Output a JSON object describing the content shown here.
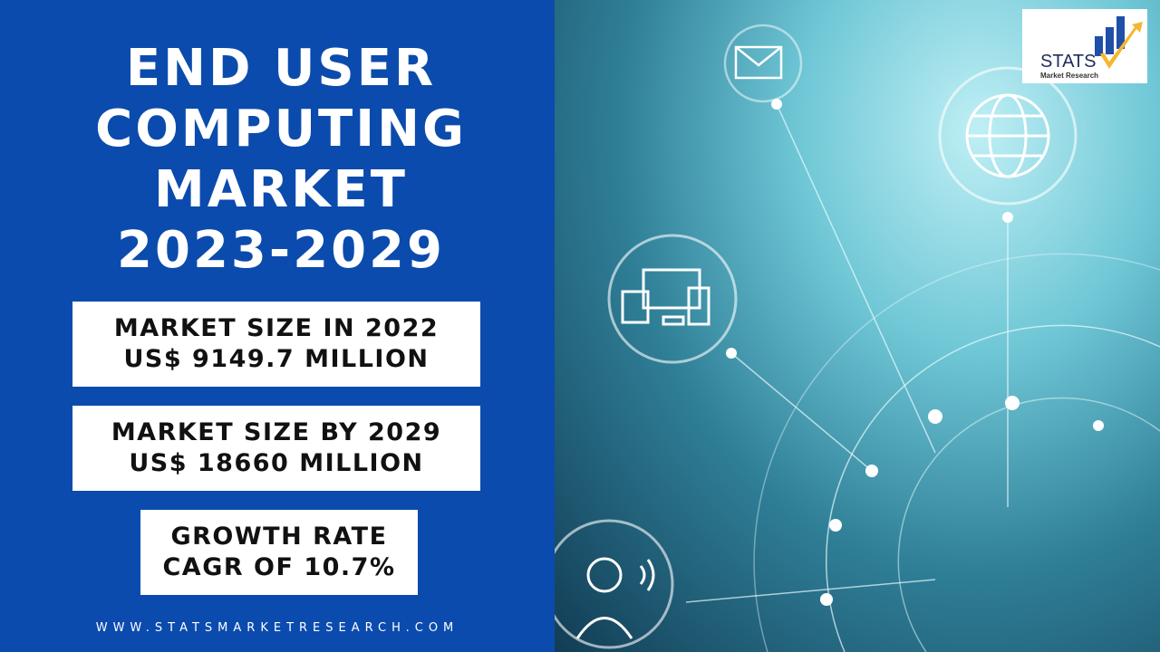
{
  "title_lines": [
    "END USER",
    "COMPUTING",
    "MARKET",
    "2023-2029"
  ],
  "boxes": [
    {
      "line1": "MARKET SIZE IN 2022",
      "line2": "US$ 9149.7 MILLION"
    },
    {
      "line1": "MARKET SIZE BY 2029",
      "line2": "US$ 18660 MILLION"
    },
    {
      "line1": "GROWTH RATE",
      "line2": "CAGR OF 10.7%"
    }
  ],
  "website": "WWW.STATSMARKETRESEARCH.COM",
  "logo": {
    "name": "STATS",
    "sub": "Market Research"
  },
  "colors": {
    "panel": "#0b4bad",
    "logo_navy": "#1f2d5a",
    "logo_arrow": "#f4b731"
  },
  "icons": [
    "mail-icon",
    "globe-icon",
    "devices-icon",
    "headset-agent-icon"
  ]
}
